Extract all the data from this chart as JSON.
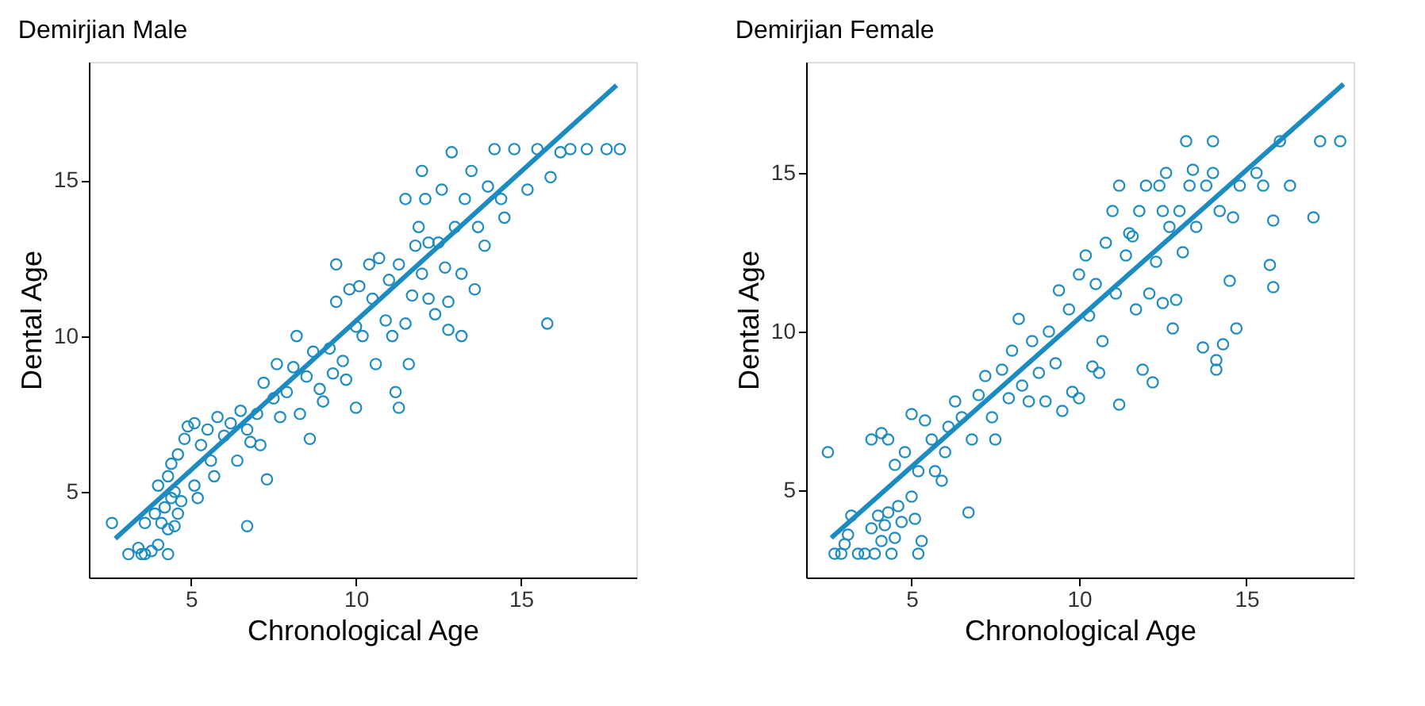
{
  "chart_data": [
    {
      "type": "scatter",
      "title": "Demirjian Male",
      "xlabel": "Chronological Age",
      "ylabel": "Dental Age",
      "xlim": [
        1.9,
        18.5
      ],
      "ylim": [
        2.25,
        18.8
      ],
      "xticks": [
        5,
        10,
        15
      ],
      "yticks": [
        5,
        10,
        15
      ],
      "grid": false,
      "series": [
        {
          "marker": "circle",
          "color": "#1b8bc1",
          "x": [
            2.6,
            3.1,
            3.4,
            3.5,
            3.6,
            3.8,
            4.0,
            4.3,
            3.6,
            3.9,
            4.1,
            4.3,
            4.5,
            4.2,
            4.4,
            4.6,
            4.0,
            4.3,
            4.5,
            4.7,
            4.4,
            4.6,
            4.8,
            5.1,
            5.2,
            4.9,
            5.1,
            5.3,
            5.5,
            5.6,
            5.7,
            5.8,
            6.0,
            6.2,
            6.4,
            6.5,
            6.7,
            6.8,
            7.0,
            7.2,
            7.3,
            6.7,
            7.1,
            7.5,
            7.6,
            7.7,
            7.9,
            8.1,
            8.2,
            8.3,
            8.6,
            8.5,
            8.7,
            8.9,
            9.0,
            9.2,
            9.3,
            9.4,
            9.4,
            9.6,
            9.7,
            9.8,
            10.0,
            10.0,
            10.1,
            10.2,
            10.4,
            10.5,
            10.6,
            10.7,
            10.9,
            11.0,
            11.1,
            11.2,
            11.3,
            11.3,
            11.5,
            11.6,
            11.7,
            11.8,
            11.9,
            12.0,
            12.1,
            12.2,
            12.4,
            12.5,
            12.6,
            12.7,
            12.8,
            12.8,
            12.9,
            13.0,
            13.2,
            13.2,
            13.3,
            13.5,
            13.6,
            13.7,
            13.9,
            14.0,
            14.2,
            14.4,
            14.5,
            14.8,
            15.2,
            15.5,
            15.8,
            15.9,
            16.2,
            16.5,
            17.0,
            17.6,
            18.0,
            11.5,
            12.2,
            12.0
          ],
          "values": [
            4.0,
            3.0,
            3.2,
            3.0,
            3.0,
            3.1,
            3.3,
            3.0,
            4.0,
            4.3,
            4.0,
            3.8,
            3.9,
            4.5,
            4.8,
            4.3,
            5.2,
            5.5,
            5.0,
            4.7,
            5.9,
            6.2,
            6.7,
            5.2,
            4.8,
            7.1,
            7.2,
            6.5,
            7.0,
            6.0,
            5.5,
            7.4,
            6.8,
            7.2,
            6.0,
            7.6,
            7.0,
            6.6,
            7.5,
            8.5,
            5.4,
            3.9,
            6.5,
            8.0,
            9.1,
            7.4,
            8.2,
            9.0,
            10.0,
            7.5,
            6.7,
            8.7,
            9.5,
            8.3,
            7.9,
            9.6,
            8.8,
            11.1,
            12.3,
            9.2,
            8.6,
            11.5,
            7.7,
            10.3,
            11.6,
            10.0,
            12.3,
            11.2,
            9.1,
            12.5,
            10.5,
            11.8,
            10.0,
            8.2,
            7.7,
            12.3,
            10.4,
            9.1,
            11.3,
            12.9,
            13.5,
            12.0,
            14.4,
            11.2,
            10.7,
            13.0,
            14.7,
            12.2,
            11.1,
            10.2,
            15.9,
            13.5,
            12.0,
            10.0,
            14.4,
            15.3,
            11.5,
            13.5,
            12.9,
            14.8,
            16.0,
            14.4,
            13.8,
            16.0,
            14.7,
            16.0,
            10.4,
            15.1,
            15.9,
            16.0,
            16.0,
            16.0,
            16.0,
            14.4,
            13.0,
            15.3
          ]
        },
        {
          "type": "line",
          "marker": "none",
          "line_style": "solid",
          "color": "#1b8bc1",
          "x": [
            2.7,
            17.9
          ],
          "values": [
            3.5,
            18.05
          ]
        }
      ]
    },
    {
      "type": "scatter",
      "title": "Demirjian Female",
      "xlabel": "Chronological Age",
      "ylabel": "Dental Age",
      "xlim": [
        1.85,
        18.2
      ],
      "ylim": [
        2.25,
        18.5
      ],
      "xticks": [
        5,
        10,
        15
      ],
      "yticks": [
        5,
        10,
        15
      ],
      "grid": false,
      "series": [
        {
          "marker": "circle",
          "color": "#1b8bc1",
          "x": [
            2.5,
            2.7,
            2.9,
            3.0,
            3.1,
            3.2,
            3.4,
            3.6,
            3.8,
            3.9,
            4.0,
            4.1,
            4.2,
            4.3,
            4.4,
            4.5,
            4.6,
            4.7,
            3.8,
            4.1,
            4.3,
            4.5,
            4.8,
            5.0,
            5.1,
            5.2,
            5.3,
            5.0,
            5.2,
            5.4,
            5.6,
            5.7,
            5.9,
            6.0,
            6.1,
            6.3,
            6.5,
            6.7,
            6.8,
            7.0,
            7.2,
            7.4,
            7.5,
            7.7,
            7.9,
            8.0,
            8.2,
            8.3,
            8.5,
            8.6,
            8.8,
            9.0,
            9.1,
            9.3,
            9.4,
            9.5,
            9.7,
            9.8,
            10.0,
            10.0,
            10.2,
            10.3,
            10.4,
            10.5,
            10.6,
            10.7,
            10.8,
            11.0,
            11.1,
            11.2,
            11.2,
            11.4,
            11.6,
            11.7,
            11.8,
            11.9,
            12.1,
            12.2,
            12.3,
            12.4,
            12.5,
            12.6,
            12.7,
            12.8,
            12.9,
            13.0,
            13.1,
            13.2,
            13.3,
            13.4,
            13.5,
            13.7,
            13.8,
            14.0,
            14.0,
            14.1,
            14.1,
            14.2,
            14.3,
            14.5,
            14.6,
            14.7,
            14.8,
            15.3,
            15.5,
            15.7,
            15.8,
            15.8,
            16.0,
            16.3,
            17.0,
            17.2,
            17.8,
            12.0,
            11.5,
            12.5
          ],
          "values": [
            6.2,
            3.0,
            3.0,
            3.3,
            3.6,
            4.2,
            3.0,
            3.0,
            3.8,
            3.0,
            4.2,
            3.4,
            3.9,
            4.3,
            3.0,
            3.5,
            4.5,
            4.0,
            6.6,
            6.8,
            6.6,
            5.8,
            6.2,
            4.8,
            4.1,
            3.0,
            3.4,
            7.4,
            5.6,
            7.2,
            6.6,
            5.6,
            5.3,
            6.2,
            7.0,
            7.8,
            7.3,
            4.3,
            6.6,
            8.0,
            8.6,
            7.3,
            6.6,
            8.8,
            7.9,
            9.4,
            10.4,
            8.3,
            7.8,
            9.7,
            8.7,
            7.8,
            10.0,
            9.0,
            11.3,
            7.5,
            10.7,
            8.1,
            7.9,
            11.8,
            12.4,
            10.5,
            8.9,
            11.5,
            8.7,
            9.7,
            12.8,
            13.8,
            11.2,
            7.7,
            14.6,
            12.4,
            13.0,
            10.7,
            13.8,
            8.8,
            11.2,
            8.4,
            12.2,
            14.6,
            10.9,
            15.0,
            13.3,
            10.1,
            11.0,
            13.8,
            12.5,
            16.0,
            14.6,
            15.1,
            13.3,
            9.5,
            14.6,
            15.0,
            16.0,
            9.1,
            8.8,
            13.8,
            9.6,
            11.6,
            13.6,
            10.1,
            14.6,
            15.0,
            14.6,
            12.1,
            11.4,
            13.5,
            16.0,
            14.6,
            13.6,
            16.0,
            16.0,
            14.6,
            13.1,
            13.8
          ]
        },
        {
          "type": "line",
          "marker": "none",
          "line_style": "solid",
          "color": "#1b8bc1",
          "x": [
            2.6,
            17.9
          ],
          "values": [
            3.5,
            17.8
          ]
        }
      ]
    }
  ]
}
